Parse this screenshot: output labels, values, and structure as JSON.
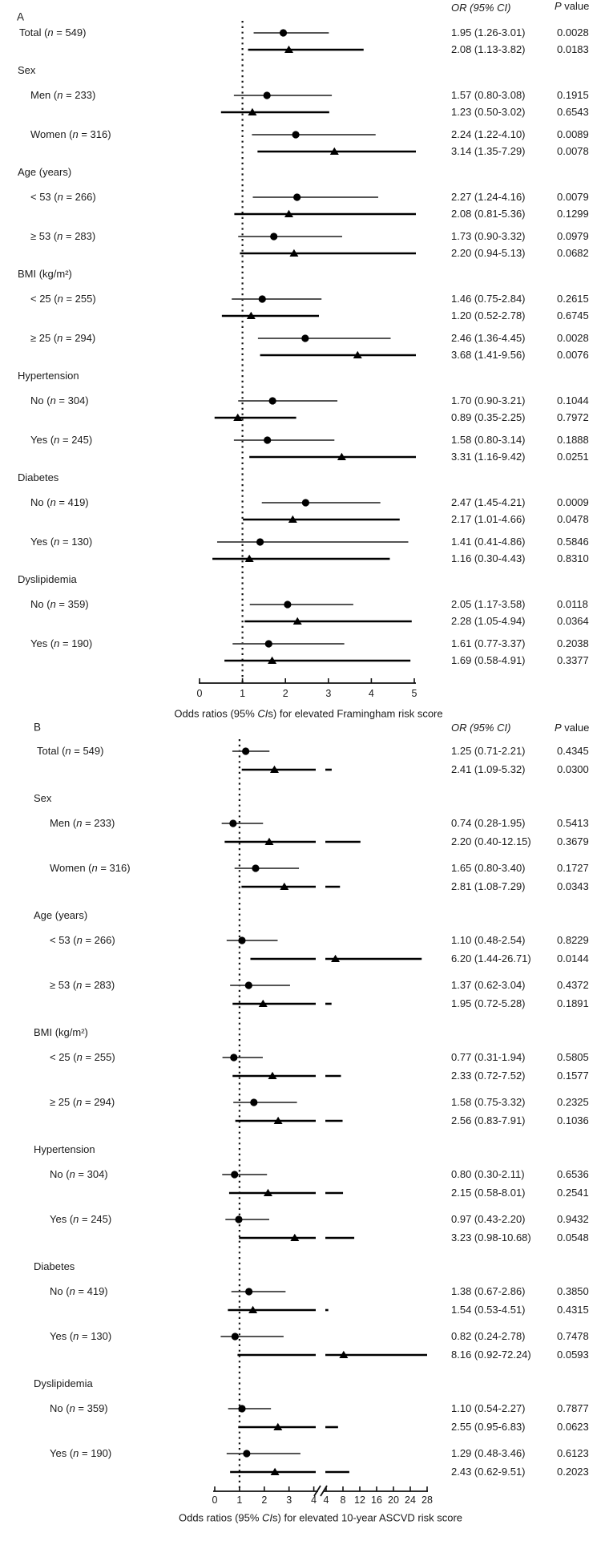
{
  "figure": {
    "description": "Two-panel forest plot of odds ratios with 95% confidence intervals",
    "marker_color": "#000000",
    "circle_line_color": "#3c3c3c",
    "triangle_line_color": "#000000"
  },
  "columns": {
    "or_header": "OR (95% CI)",
    "p_italic": "P",
    "p_rest": " value"
  },
  "chart_data": [
    {
      "panel": "A",
      "type": "forest",
      "axis": {
        "min": 0,
        "max": 5,
        "ticks": [
          0,
          1,
          2,
          3,
          4,
          5
        ],
        "refline": 1,
        "break": false,
        "title_pre": "Odds ratios (95% ",
        "title_italic": "CI",
        "title_post": "s) for elevated Framingham risk score"
      },
      "rows": [
        {
          "kind": "item",
          "name": "Total",
          "n": "549",
          "top": true,
          "estimates": [
            {
              "marker": "circle",
              "or": 1.95,
              "lo": 1.26,
              "hi": 3.01,
              "or_text": "1.95 (1.26-3.01)",
              "p": "0.0028"
            },
            {
              "marker": "triangle",
              "or": 2.08,
              "lo": 1.13,
              "hi": 3.82,
              "or_text": "2.08 (1.13-3.82)",
              "p": "0.0183"
            }
          ]
        },
        {
          "kind": "group",
          "label": "Sex"
        },
        {
          "kind": "item",
          "name": "Men",
          "n": "233",
          "estimates": [
            {
              "marker": "circle",
              "or": 1.57,
              "lo": 0.8,
              "hi": 3.08,
              "or_text": "1.57 (0.80-3.08)",
              "p": "0.1915"
            },
            {
              "marker": "triangle",
              "or": 1.23,
              "lo": 0.5,
              "hi": 3.02,
              "or_text": "1.23 (0.50-3.02)",
              "p": "0.6543"
            }
          ]
        },
        {
          "kind": "item",
          "name": "Women",
          "n": "316",
          "estimates": [
            {
              "marker": "circle",
              "or": 2.24,
              "lo": 1.22,
              "hi": 4.1,
              "or_text": "2.24 (1.22-4.10)",
              "p": "0.0089"
            },
            {
              "marker": "triangle",
              "or": 3.14,
              "lo": 1.35,
              "hi": 7.29,
              "or_text": "3.14 (1.35-7.29)",
              "p": "0.0078"
            }
          ]
        },
        {
          "kind": "group",
          "label": "Age (years)"
        },
        {
          "kind": "item",
          "name": "< 53",
          "n": "266",
          "estimates": [
            {
              "marker": "circle",
              "or": 2.27,
              "lo": 1.24,
              "hi": 4.16,
              "or_text": "2.27 (1.24-4.16)",
              "p": "0.0079"
            },
            {
              "marker": "triangle",
              "or": 2.08,
              "lo": 0.81,
              "hi": 5.36,
              "or_text": "2.08 (0.81-5.36)",
              "p": "0.1299"
            }
          ]
        },
        {
          "kind": "item",
          "name": "≥ 53",
          "n": "283",
          "estimates": [
            {
              "marker": "circle",
              "or": 1.73,
              "lo": 0.9,
              "hi": 3.32,
              "or_text": "1.73 (0.90-3.32)",
              "p": "0.0979"
            },
            {
              "marker": "triangle",
              "or": 2.2,
              "lo": 0.94,
              "hi": 5.13,
              "or_text": "2.20 (0.94-5.13)",
              "p": "0.0682"
            }
          ]
        },
        {
          "kind": "group",
          "label": "BMI (kg/m²)"
        },
        {
          "kind": "item",
          "name": "< 25",
          "n": "255",
          "estimates": [
            {
              "marker": "circle",
              "or": 1.46,
              "lo": 0.75,
              "hi": 2.84,
              "or_text": "1.46 (0.75-2.84)",
              "p": "0.2615"
            },
            {
              "marker": "triangle",
              "or": 1.2,
              "lo": 0.52,
              "hi": 2.78,
              "or_text": "1.20 (0.52-2.78)",
              "p": "0.6745"
            }
          ]
        },
        {
          "kind": "item",
          "name": "≥ 25",
          "n": "294",
          "estimates": [
            {
              "marker": "circle",
              "or": 2.46,
              "lo": 1.36,
              "hi": 4.45,
              "or_text": "2.46 (1.36-4.45)",
              "p": "0.0028"
            },
            {
              "marker": "triangle",
              "or": 3.68,
              "lo": 1.41,
              "hi": 9.56,
              "or_text": "3.68 (1.41-9.56)",
              "p": "0.0076"
            }
          ]
        },
        {
          "kind": "group",
          "label": "Hypertension"
        },
        {
          "kind": "item",
          "name": "No",
          "n": "304",
          "estimates": [
            {
              "marker": "circle",
              "or": 1.7,
              "lo": 0.9,
              "hi": 3.21,
              "or_text": "1.70 (0.90-3.21)",
              "p": "0.1044"
            },
            {
              "marker": "triangle",
              "or": 0.89,
              "lo": 0.35,
              "hi": 2.25,
              "or_text": "0.89 (0.35-2.25)",
              "p": "0.7972"
            }
          ]
        },
        {
          "kind": "item",
          "name": "Yes",
          "n": "245",
          "estimates": [
            {
              "marker": "circle",
              "or": 1.58,
              "lo": 0.8,
              "hi": 3.14,
              "or_text": "1.58 (0.80-3.14)",
              "p": "0.1888"
            },
            {
              "marker": "triangle",
              "or": 3.31,
              "lo": 1.16,
              "hi": 9.42,
              "or_text": "3.31 (1.16-9.42)",
              "p": "0.0251"
            }
          ]
        },
        {
          "kind": "group",
          "label": "Diabetes"
        },
        {
          "kind": "item",
          "name": "No",
          "n": "419",
          "estimates": [
            {
              "marker": "circle",
              "or": 2.47,
              "lo": 1.45,
              "hi": 4.21,
              "or_text": "2.47 (1.45-4.21)",
              "p": "0.0009"
            },
            {
              "marker": "triangle",
              "or": 2.17,
              "lo": 1.01,
              "hi": 4.66,
              "or_text": "2.17 (1.01-4.66)",
              "p": "0.0478"
            }
          ]
        },
        {
          "kind": "item",
          "name": "Yes",
          "n": "130",
          "estimates": [
            {
              "marker": "circle",
              "or": 1.41,
              "lo": 0.41,
              "hi": 4.86,
              "or_text": "1.41 (0.41-4.86)",
              "p": "0.5846"
            },
            {
              "marker": "triangle",
              "or": 1.16,
              "lo": 0.3,
              "hi": 4.43,
              "or_text": "1.16 (0.30-4.43)",
              "p": "0.8310"
            }
          ]
        },
        {
          "kind": "group",
          "label": "Dyslipidemia"
        },
        {
          "kind": "item",
          "name": "No",
          "n": "359",
          "estimates": [
            {
              "marker": "circle",
              "or": 2.05,
              "lo": 1.17,
              "hi": 3.58,
              "or_text": "2.05 (1.17-3.58)",
              "p": "0.0118"
            },
            {
              "marker": "triangle",
              "or": 2.28,
              "lo": 1.05,
              "hi": 4.94,
              "or_text": "2.28 (1.05-4.94)",
              "p": "0.0364"
            }
          ]
        },
        {
          "kind": "item",
          "name": "Yes",
          "n": "190",
          "estimates": [
            {
              "marker": "circle",
              "or": 1.61,
              "lo": 0.77,
              "hi": 3.37,
              "or_text": "1.61 (0.77-3.37)",
              "p": "0.2038"
            },
            {
              "marker": "triangle",
              "or": 1.69,
              "lo": 0.58,
              "hi": 4.91,
              "or_text": "1.69 (0.58-4.91)",
              "p": "0.3377"
            }
          ]
        }
      ]
    },
    {
      "panel": "B",
      "type": "forest",
      "axis": {
        "min": 0,
        "max": 28,
        "left_ticks": [
          0,
          1,
          2,
          3,
          4
        ],
        "right_ticks": [
          4,
          8,
          12,
          16,
          20,
          24,
          28
        ],
        "refline": 1,
        "break": true,
        "break_at": 4,
        "title_pre": "Odds ratios (95% ",
        "title_italic": "CI",
        "title_post": "s) for elevated 10-year ASCVD risk score"
      },
      "rows": [
        {
          "kind": "item",
          "name": "Total",
          "n": "549",
          "top": true,
          "estimates": [
            {
              "marker": "circle",
              "or": 1.25,
              "lo": 0.71,
              "hi": 2.21,
              "or_text": "1.25 (0.71-2.21)",
              "p": "0.4345"
            },
            {
              "marker": "triangle",
              "or": 2.41,
              "lo": 1.09,
              "hi": 5.32,
              "or_text": "2.41 (1.09-5.32)",
              "p": "0.0300"
            }
          ]
        },
        {
          "kind": "group",
          "label": "Sex"
        },
        {
          "kind": "item",
          "name": "Men",
          "n": "233",
          "estimates": [
            {
              "marker": "circle",
              "or": 0.74,
              "lo": 0.28,
              "hi": 1.95,
              "or_text": "0.74 (0.28-1.95)",
              "p": "0.5413"
            },
            {
              "marker": "triangle",
              "or": 2.2,
              "lo": 0.4,
              "hi": 12.15,
              "or_text": "2.20 (0.40-12.15)",
              "p": "0.3679"
            }
          ]
        },
        {
          "kind": "item",
          "name": "Women",
          "n": "316",
          "estimates": [
            {
              "marker": "circle",
              "or": 1.65,
              "lo": 0.8,
              "hi": 3.4,
              "or_text": "1.65 (0.80-3.40)",
              "p": "0.1727"
            },
            {
              "marker": "triangle",
              "or": 2.81,
              "lo": 1.08,
              "hi": 7.29,
              "or_text": "2.81 (1.08-7.29)",
              "p": "0.0343"
            }
          ]
        },
        {
          "kind": "group",
          "label": "Age (years)"
        },
        {
          "kind": "item",
          "name": "< 53",
          "n": "266",
          "estimates": [
            {
              "marker": "circle",
              "or": 1.1,
              "lo": 0.48,
              "hi": 2.54,
              "or_text": "1.10 (0.48-2.54)",
              "p": "0.8229"
            },
            {
              "marker": "triangle",
              "or": 6.2,
              "lo": 1.44,
              "hi": 26.71,
              "or_text": "6.20 (1.44-26.71)",
              "p": "0.0144"
            }
          ]
        },
        {
          "kind": "item",
          "name": "≥ 53",
          "n": "283",
          "estimates": [
            {
              "marker": "circle",
              "or": 1.37,
              "lo": 0.62,
              "hi": 3.04,
              "or_text": "1.37 (0.62-3.04)",
              "p": "0.4372"
            },
            {
              "marker": "triangle",
              "or": 1.95,
              "lo": 0.72,
              "hi": 5.28,
              "or_text": "1.95 (0.72-5.28)",
              "p": "0.1891"
            }
          ]
        },
        {
          "kind": "group",
          "label": "BMI (kg/m²)"
        },
        {
          "kind": "item",
          "name": "< 25",
          "n": "255",
          "estimates": [
            {
              "marker": "circle",
              "or": 0.77,
              "lo": 0.31,
              "hi": 1.94,
              "or_text": "0.77 (0.31-1.94)",
              "p": "0.5805"
            },
            {
              "marker": "triangle",
              "or": 2.33,
              "lo": 0.72,
              "hi": 7.52,
              "or_text": "2.33 (0.72-7.52)",
              "p": "0.1577"
            }
          ]
        },
        {
          "kind": "item",
          "name": "≥ 25",
          "n": "294",
          "estimates": [
            {
              "marker": "circle",
              "or": 1.58,
              "lo": 0.75,
              "hi": 3.32,
              "or_text": "1.58 (0.75-3.32)",
              "p": "0.2325"
            },
            {
              "marker": "triangle",
              "or": 2.56,
              "lo": 0.83,
              "hi": 7.91,
              "or_text": "2.56 (0.83-7.91)",
              "p": "0.1036"
            }
          ]
        },
        {
          "kind": "group",
          "label": "Hypertension"
        },
        {
          "kind": "item",
          "name": "No",
          "n": "304",
          "estimates": [
            {
              "marker": "circle",
              "or": 0.8,
              "lo": 0.3,
              "hi": 2.11,
              "or_text": "0.80 (0.30-2.11)",
              "p": "0.6536"
            },
            {
              "marker": "triangle",
              "or": 2.15,
              "lo": 0.58,
              "hi": 8.01,
              "or_text": "2.15 (0.58-8.01)",
              "p": "0.2541"
            }
          ]
        },
        {
          "kind": "item",
          "name": "Yes",
          "n": "245",
          "estimates": [
            {
              "marker": "circle",
              "or": 0.97,
              "lo": 0.43,
              "hi": 2.2,
              "or_text": "0.97 (0.43-2.20)",
              "p": "0.9432"
            },
            {
              "marker": "triangle",
              "or": 3.23,
              "lo": 0.98,
              "hi": 10.68,
              "or_text": "3.23 (0.98-10.68)",
              "p": "0.0548"
            }
          ]
        },
        {
          "kind": "group",
          "label": "Diabetes"
        },
        {
          "kind": "item",
          "name": "No",
          "n": "419",
          "estimates": [
            {
              "marker": "circle",
              "or": 1.38,
              "lo": 0.67,
              "hi": 2.86,
              "or_text": "1.38 (0.67-2.86)",
              "p": "0.3850"
            },
            {
              "marker": "triangle",
              "or": 1.54,
              "lo": 0.53,
              "hi": 4.51,
              "or_text": "1.54 (0.53-4.51)",
              "p": "0.4315"
            }
          ]
        },
        {
          "kind": "item",
          "name": "Yes",
          "n": "130",
          "estimates": [
            {
              "marker": "circle",
              "or": 0.82,
              "lo": 0.24,
              "hi": 2.78,
              "or_text": "0.82 (0.24-2.78)",
              "p": "0.7478"
            },
            {
              "marker": "triangle",
              "or": 8.16,
              "lo": 0.92,
              "hi": 72.24,
              "or_text": "8.16 (0.92-72.24)",
              "p": "0.0593"
            }
          ]
        },
        {
          "kind": "group",
          "label": "Dyslipidemia"
        },
        {
          "kind": "item",
          "name": "No",
          "n": "359",
          "estimates": [
            {
              "marker": "circle",
              "or": 1.1,
              "lo": 0.54,
              "hi": 2.27,
              "or_text": "1.10 (0.54-2.27)",
              "p": "0.7877"
            },
            {
              "marker": "triangle",
              "or": 2.55,
              "lo": 0.95,
              "hi": 6.83,
              "or_text": "2.55 (0.95-6.83)",
              "p": "0.0623"
            }
          ]
        },
        {
          "kind": "item",
          "name": "Yes",
          "n": "190",
          "estimates": [
            {
              "marker": "circle",
              "or": 1.29,
              "lo": 0.48,
              "hi": 3.46,
              "or_text": "1.29 (0.48-3.46)",
              "p": "0.6123"
            },
            {
              "marker": "triangle",
              "or": 2.43,
              "lo": 0.62,
              "hi": 9.51,
              "or_text": "2.43 (0.62-9.51)",
              "p": "0.2023"
            }
          ]
        }
      ]
    }
  ]
}
